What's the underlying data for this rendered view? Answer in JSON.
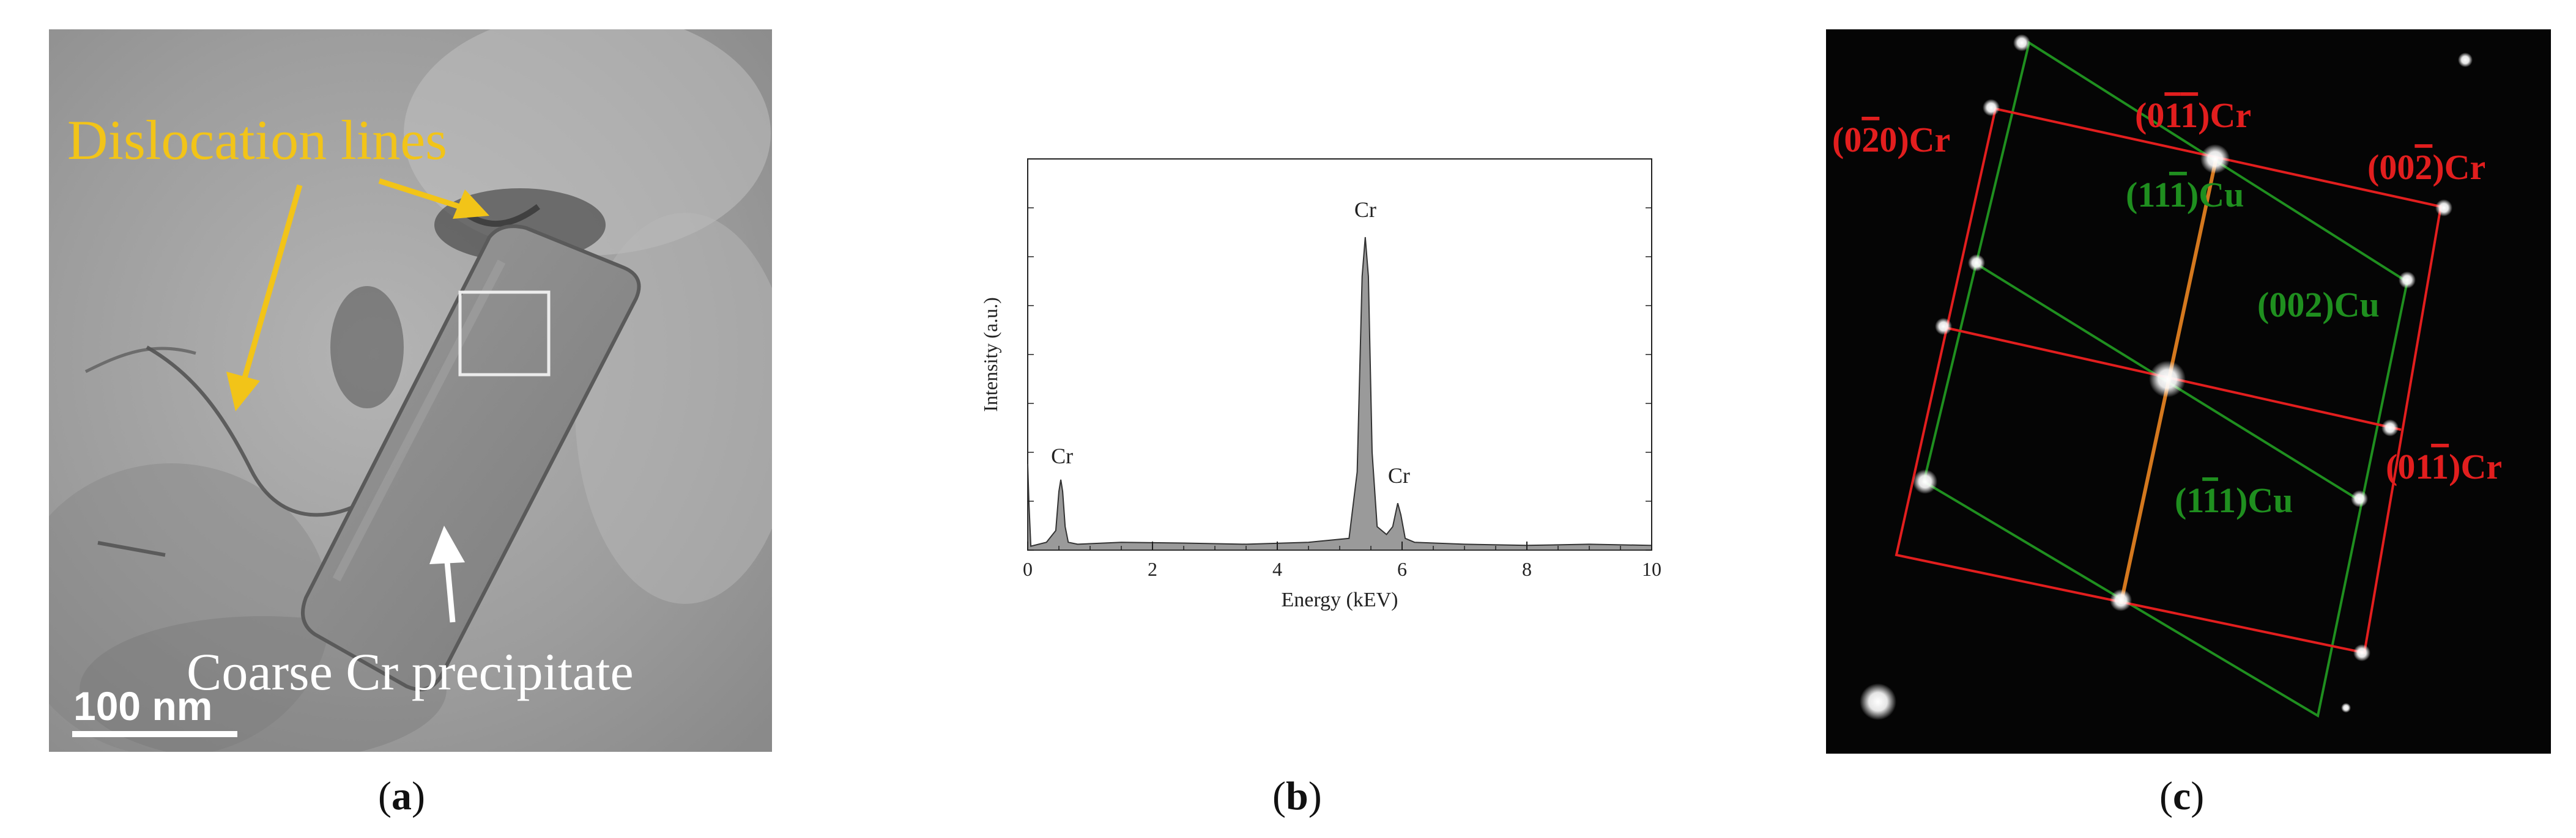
{
  "figure": {
    "panels": [
      {
        "id": "a",
        "caption_letter": "a",
        "labels": {
          "dislocation": "Dislocation lines",
          "precipitate": "Coarse Cr precipitate",
          "scale_bar": "100 nm"
        },
        "colors": {
          "label_yellow": "#f2c418",
          "label_white": "#ffffff"
        }
      },
      {
        "id": "b",
        "caption_letter": "b",
        "chart_data": {
          "type": "area",
          "xlabel": "Energy (kEV)",
          "ylabel": "Intensity (a.u.)",
          "xlim": [
            0,
            10
          ],
          "ylim": [
            0,
            1
          ],
          "xticks": [
            "0",
            "2",
            "4",
            "6",
            "8",
            "10"
          ],
          "x": [
            0.0,
            0.02,
            0.05,
            0.3,
            0.45,
            0.5,
            0.53,
            0.56,
            0.6,
            0.65,
            0.8,
            1.5,
            2.5,
            3.5,
            4.5,
            5.15,
            5.28,
            5.36,
            5.41,
            5.46,
            5.52,
            5.6,
            5.75,
            5.85,
            5.93,
            5.98,
            6.05,
            6.2,
            7.0,
            8.0,
            9.0,
            10.0
          ],
          "y": [
            0.22,
            0.12,
            0.01,
            0.02,
            0.05,
            0.15,
            0.18,
            0.15,
            0.06,
            0.02,
            0.015,
            0.02,
            0.018,
            0.015,
            0.02,
            0.03,
            0.2,
            0.7,
            0.8,
            0.7,
            0.25,
            0.06,
            0.04,
            0.06,
            0.12,
            0.09,
            0.03,
            0.02,
            0.015,
            0.012,
            0.015,
            0.012
          ],
          "annotations": [
            {
              "text": "Cr",
              "x": 0.55,
              "y": 0.2
            },
            {
              "text": "Cr",
              "x": 5.41,
              "y": 0.83
            },
            {
              "text": "Cr",
              "x": 5.95,
              "y": 0.15
            }
          ],
          "color": "#9a9a9a"
        }
      },
      {
        "id": "c",
        "caption_letter": "c",
        "labels_red": [
          "(0\u00052\u00030)Cr"
        ],
        "spots": {
          "red": {
            "r020": "(0",
            "r020b": "2",
            "r020c": "0)Cr",
            "r011a": "(0",
            "r011b": "1",
            "r011c": "1",
            "r011d": ")Cr",
            "r002a": "(00",
            "r002b": "2",
            "r002c": ")Cr",
            "r011ba": "(01",
            "r011bb": "1",
            "r011bc": ")Cr"
          },
          "green": {
            "g111a": "(11",
            "g111b": "1",
            "g111c": ")Cu",
            "g002": "(002)Cu",
            "g1b11a": "(1",
            "g1b11b": "1",
            "g1b11c": "1)Cu"
          }
        },
        "colors": {
          "red": "#e21e1e",
          "green": "#1f8f1f",
          "orange": "#d4781e"
        }
      }
    ]
  }
}
